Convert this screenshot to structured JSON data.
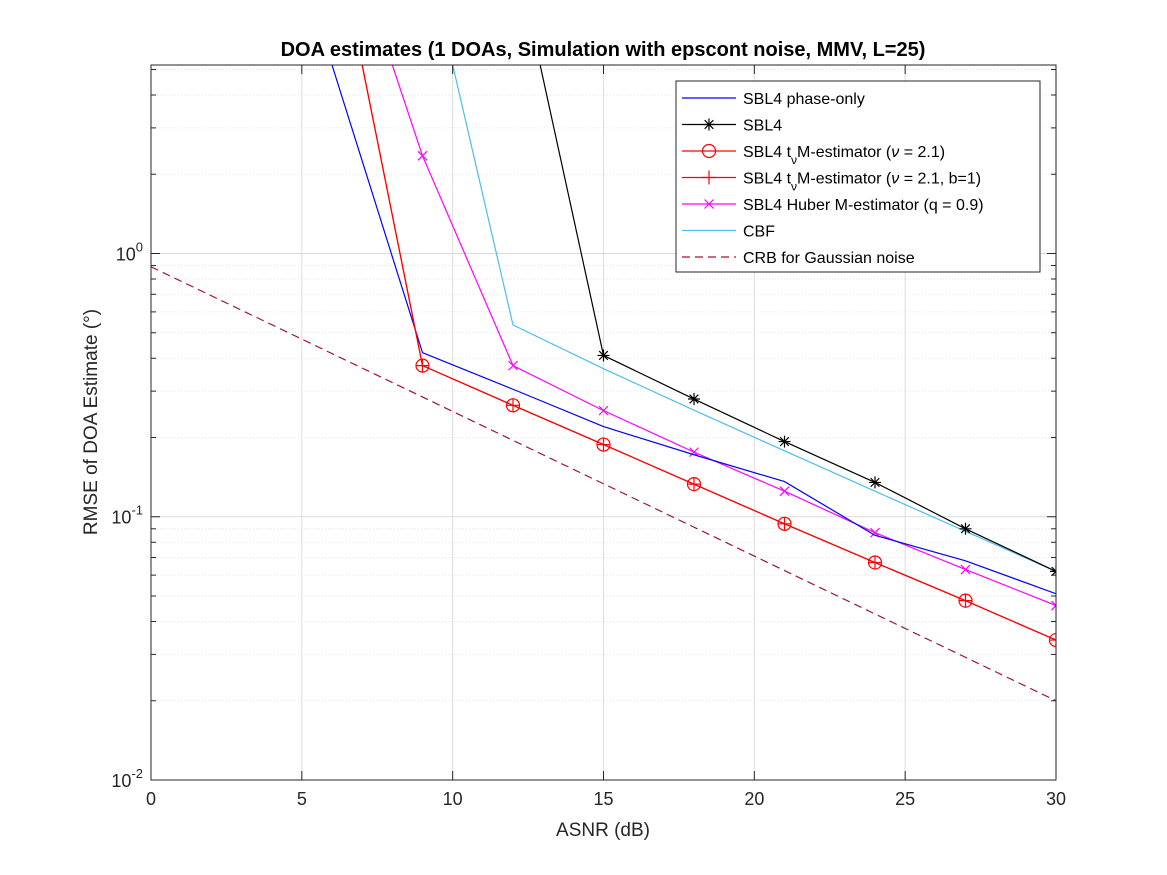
{
  "chart_data": {
    "type": "line",
    "title": "DOA estimates (1 DOAs, Simulation with epscont noise, MMV, L=25)",
    "xlabel": "ASNR (dB)",
    "ylabel": "RMSE of DOA Estimate (°)",
    "xlim": [
      0,
      30
    ],
    "ylim": [
      0.01,
      5.2
    ],
    "yscale": "log",
    "grid": true,
    "minor_grid": true,
    "legend_position": "top-right",
    "x_ticks": [
      "0",
      "5",
      "10",
      "15",
      "20",
      "25",
      "30"
    ],
    "x_tick_values": [
      0,
      5,
      10,
      15,
      20,
      25,
      30
    ],
    "y_ticks": [
      {
        "value": 1,
        "base": "10",
        "exp": "0"
      },
      {
        "value": 0.1,
        "base": "10",
        "exp": "-1"
      },
      {
        "value": 0.01,
        "base": "10",
        "exp": "-2"
      }
    ],
    "series": [
      {
        "name": "SBL4 phase-only",
        "color": "#0000ff",
        "line_style": "solid",
        "marker": "none",
        "x": [
          6,
          9,
          12,
          15,
          18,
          21,
          24,
          27,
          30
        ],
        "y": [
          5.2,
          0.42,
          0.305,
          0.22,
          0.172,
          0.136,
          0.085,
          0.068,
          0.051
        ]
      },
      {
        "name": "SBL4",
        "color": "#000000",
        "line_style": "solid",
        "marker": "star",
        "x": [
          12.9,
          15,
          18,
          21,
          24,
          27,
          30
        ],
        "y": [
          5.2,
          0.41,
          0.28,
          0.193,
          0.135,
          0.09,
          0.062
        ]
      },
      {
        "name": "SBL4 tν M-estimator (ν = 2.1)",
        "legend_parts": [
          "SBL4 t",
          "ν",
          "M-estimator (",
          "ν",
          " = 2.1)"
        ],
        "color": "#ff0000",
        "line_style": "solid",
        "marker": "circle",
        "x": [
          7,
          9,
          12,
          15,
          18,
          21,
          24,
          27,
          30
        ],
        "y": [
          5.2,
          0.375,
          0.265,
          0.188,
          0.133,
          0.094,
          0.067,
          0.048,
          0.034
        ]
      },
      {
        "name": "SBL4 tν M-estimator (ν = 2.1, b=1)",
        "legend_parts": [
          "SBL4 t",
          "ν",
          "M-estimator (",
          "ν",
          " = 2.1, b=1)"
        ],
        "color": "#ff0000",
        "line_style": "solid",
        "marker": "plus",
        "x": [
          7,
          9,
          12,
          15,
          18,
          21,
          24,
          27,
          30
        ],
        "y": [
          5.2,
          0.375,
          0.265,
          0.188,
          0.133,
          0.094,
          0.067,
          0.048,
          0.034
        ]
      },
      {
        "name": "SBL4 Huber M-estimator (q = 0.9)",
        "color": "#ff00ff",
        "line_style": "solid",
        "marker": "x",
        "x": [
          8,
          9,
          12,
          15,
          18,
          21,
          24,
          27,
          30
        ],
        "y": [
          5.2,
          2.35,
          0.375,
          0.253,
          0.176,
          0.125,
          0.087,
          0.063,
          0.046
        ]
      },
      {
        "name": "CBF",
        "color": "#4dbeee",
        "line_style": "solid",
        "marker": "none",
        "x": [
          10,
          12,
          15,
          18,
          21,
          24,
          27,
          30
        ],
        "y": [
          5.2,
          0.535,
          0.365,
          0.254,
          0.178,
          0.125,
          0.088,
          0.062
        ]
      },
      {
        "name": "CRB for Gaussian noise",
        "color": "#a2142f",
        "line_style": "dashed",
        "marker": "none",
        "x": [
          0,
          30
        ],
        "y": [
          0.89,
          0.02
        ]
      }
    ]
  }
}
